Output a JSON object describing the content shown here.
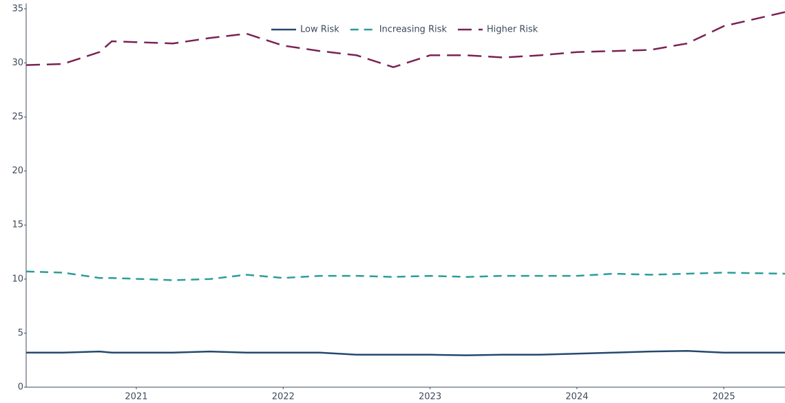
{
  "chart_data": {
    "type": "line",
    "x": [
      "2020-04",
      "2020-07",
      "2020-10",
      "2020-11",
      "2021-04",
      "2021-07",
      "2021-10",
      "2022-01",
      "2022-04",
      "2022-07",
      "2022-10",
      "2023-01",
      "2023-04",
      "2023-07",
      "2023-10",
      "2024-01",
      "2024-04",
      "2024-07",
      "2024-10",
      "2025-01",
      "2025-06"
    ],
    "series": [
      {
        "name": "Low Risk",
        "color": "#24496e",
        "dash": "solid",
        "values": [
          3.2,
          3.2,
          3.3,
          3.2,
          3.2,
          3.3,
          3.2,
          3.2,
          3.2,
          3.0,
          3.0,
          3.0,
          2.95,
          3.0,
          3.0,
          3.1,
          3.2,
          3.3,
          3.35,
          3.2,
          3.2
        ]
      },
      {
        "name": "Increasing Risk",
        "color": "#2a9d98",
        "dash": "dash",
        "values": [
          10.7,
          10.6,
          10.1,
          10.1,
          9.9,
          10.0,
          10.4,
          10.1,
          10.3,
          10.3,
          10.2,
          10.3,
          10.2,
          10.3,
          10.3,
          10.3,
          10.5,
          10.4,
          10.5,
          10.6,
          10.5
        ]
      },
      {
        "name": "Higher Risk",
        "color": "#7a2155",
        "dash": "longdash",
        "values": [
          29.8,
          29.9,
          31.0,
          32.0,
          31.8,
          32.3,
          32.7,
          31.6,
          31.1,
          30.7,
          29.6,
          30.7,
          30.7,
          30.5,
          30.7,
          31.0,
          31.1,
          31.2,
          31.8,
          33.4,
          34.7
        ]
      }
    ],
    "xlim": [
      "2020-04",
      "2025-06"
    ],
    "xticks": [
      "2021",
      "2022",
      "2023",
      "2024",
      "2025"
    ],
    "ylim": [
      0,
      35.5
    ],
    "yticks": [
      0,
      5,
      10,
      15,
      20,
      25,
      30,
      35
    ],
    "grid": false,
    "legend": "top"
  }
}
